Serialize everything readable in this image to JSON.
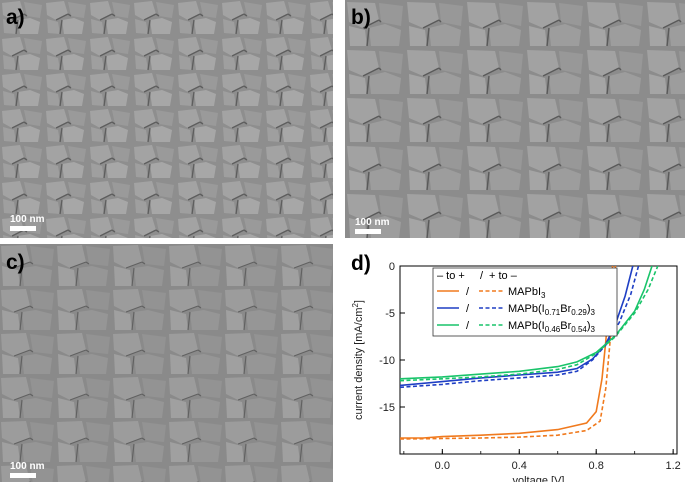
{
  "panels": [
    {
      "label": "a)",
      "scale_text": "100 nm"
    },
    {
      "label": "b)",
      "scale_text": "100 nm"
    },
    {
      "label": "c)",
      "scale_text": "100 nm"
    },
    {
      "label": "d)"
    }
  ],
  "chart_data": {
    "type": "line",
    "xlabel": "voltage [V]",
    "ylabel": "current density [mA/cm",
    "ylabel_sup": "2",
    "ylabel_end": "]",
    "xlim": [
      -0.22,
      1.22
    ],
    "ylim": [
      -20,
      0
    ],
    "xticks": [
      "0.0",
      "0.4",
      "0.8",
      "1.2"
    ],
    "xtick_values": [
      0.0,
      0.4,
      0.8,
      1.2
    ],
    "yticks": [
      "0",
      "-5",
      "-10",
      "-15"
    ],
    "ytick_values": [
      0,
      -5,
      -10,
      -15
    ],
    "legend": {
      "position": "top-right",
      "header_fwd": "– to +",
      "header_sep": "/",
      "header_rev": "+ to –",
      "entries": [
        {
          "sep": "/",
          "base": "MAPbI",
          "sub1": "3",
          "mid": "",
          "sub2": "",
          "end": ""
        },
        {
          "sep": "/",
          "base": "MAPb(I",
          "sub1": "0.71",
          "mid": "Br",
          "sub2": "0.29",
          "end": ")3"
        },
        {
          "sep": "/",
          "base": "MAPb(I",
          "sub1": "0.46",
          "mid": "Br",
          "sub2": "0.54",
          "end": ")3"
        }
      ]
    },
    "series": [
      {
        "color": "#f07a1e",
        "dash": "solid",
        "points": [
          [
            -0.22,
            -18.3
          ],
          [
            -0.1,
            -18.3
          ],
          [
            0.0,
            -18.15
          ],
          [
            0.2,
            -18.0
          ],
          [
            0.4,
            -17.8
          ],
          [
            0.6,
            -17.4
          ],
          [
            0.75,
            -16.7
          ],
          [
            0.8,
            -15.5
          ],
          [
            0.83,
            -12.0
          ],
          [
            0.85,
            -8.0
          ],
          [
            0.87,
            -3.0
          ],
          [
            0.885,
            0.0
          ]
        ]
      },
      {
        "color": "#f07a1e",
        "dash": "dashed",
        "points": [
          [
            -0.22,
            -18.4
          ],
          [
            0.0,
            -18.35
          ],
          [
            0.2,
            -18.3
          ],
          [
            0.4,
            -18.2
          ],
          [
            0.6,
            -18.0
          ],
          [
            0.75,
            -17.5
          ],
          [
            0.82,
            -16.5
          ],
          [
            0.85,
            -13.0
          ],
          [
            0.87,
            -8.5
          ],
          [
            0.885,
            -4.0
          ],
          [
            0.9,
            0.0
          ]
        ]
      },
      {
        "color": "#1f3fc4",
        "dash": "solid",
        "points": [
          [
            -0.22,
            -12.7
          ],
          [
            0.0,
            -12.3
          ],
          [
            0.2,
            -11.9
          ],
          [
            0.4,
            -11.6
          ],
          [
            0.6,
            -11.3
          ],
          [
            0.7,
            -10.9
          ],
          [
            0.78,
            -9.9
          ],
          [
            0.85,
            -8.3
          ],
          [
            0.9,
            -6.2
          ],
          [
            0.95,
            -3.2
          ],
          [
            0.99,
            0.0
          ]
        ]
      },
      {
        "color": "#1f3fc4",
        "dash": "dashed",
        "points": [
          [
            -0.22,
            -12.9
          ],
          [
            0.0,
            -12.6
          ],
          [
            0.2,
            -12.2
          ],
          [
            0.4,
            -11.9
          ],
          [
            0.6,
            -11.6
          ],
          [
            0.7,
            -11.2
          ],
          [
            0.78,
            -10.0
          ],
          [
            0.85,
            -8.4
          ],
          [
            0.92,
            -6.0
          ],
          [
            0.98,
            -3.0
          ],
          [
            1.02,
            0.0
          ]
        ]
      },
      {
        "color": "#19c46a",
        "dash": "solid",
        "points": [
          [
            -0.22,
            -12.0
          ],
          [
            0.0,
            -11.8
          ],
          [
            0.2,
            -11.5
          ],
          [
            0.4,
            -11.2
          ],
          [
            0.6,
            -10.7
          ],
          [
            0.7,
            -10.2
          ],
          [
            0.8,
            -9.2
          ],
          [
            0.9,
            -7.4
          ],
          [
            1.0,
            -4.8
          ],
          [
            1.05,
            -2.5
          ],
          [
            1.09,
            0.0
          ]
        ]
      },
      {
        "color": "#19c46a",
        "dash": "dashed",
        "points": [
          [
            -0.22,
            -12.2
          ],
          [
            0.0,
            -12.0
          ],
          [
            0.2,
            -11.8
          ],
          [
            0.4,
            -11.5
          ],
          [
            0.6,
            -11.0
          ],
          [
            0.7,
            -10.5
          ],
          [
            0.8,
            -9.3
          ],
          [
            0.9,
            -7.5
          ],
          [
            1.0,
            -5.0
          ],
          [
            1.07,
            -2.5
          ],
          [
            1.12,
            0.0
          ]
        ]
      }
    ]
  }
}
